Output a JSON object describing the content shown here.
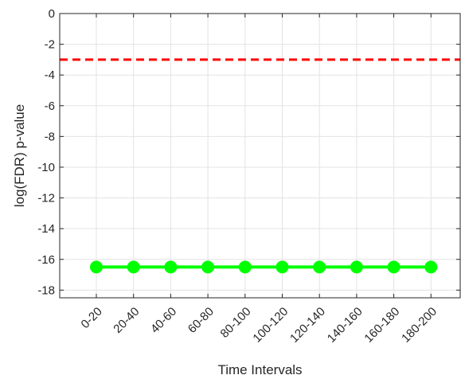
{
  "chart_data": {
    "type": "line",
    "title": "",
    "xlabel": "Time Intervals",
    "ylabel": "log(FDR) p-value",
    "categories": [
      "0-20",
      "20-40",
      "40-60",
      "60-80",
      "80-100",
      "100-120",
      "120-140",
      "140-160",
      "160-180",
      "180-200"
    ],
    "series": [
      {
        "values": [
          -16.5,
          -16.5,
          -16.5,
          -16.5,
          -16.5,
          -16.5,
          -16.5,
          -16.5,
          -16.5,
          -16.5
        ],
        "color": "#00ff00",
        "marker": "circle"
      }
    ],
    "threshold": {
      "value": -3,
      "color": "#ff0000",
      "style": "dashed"
    },
    "ylim": [
      -18.5,
      0
    ],
    "yticks": [
      0,
      -2,
      -4,
      -6,
      -8,
      -10,
      -12,
      -14,
      -16,
      -18
    ],
    "grid": true,
    "legend": "none"
  }
}
